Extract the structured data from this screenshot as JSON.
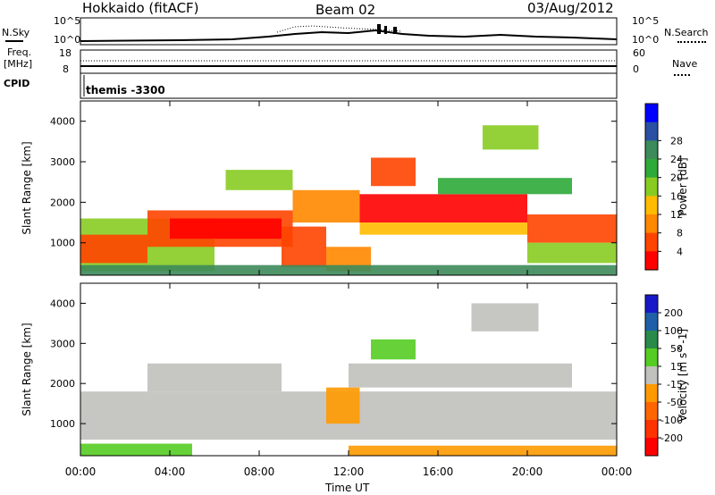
{
  "header": {
    "station": "Hokkaido (fitACF)",
    "beam": "Beam 02",
    "date": "03/Aug/2012"
  },
  "nsky_panel": {
    "label": "N.Sky",
    "left_ticks": [
      "10^5",
      "10^0"
    ],
    "right_label": "N.Search",
    "right_ticks": [
      "10^5",
      "10^0"
    ]
  },
  "freq_panel": {
    "label_line1": "Freq.",
    "label_line2": "[MHz]",
    "left_ticks": [
      "18",
      "8"
    ],
    "right_label": "Nave",
    "right_ticks": [
      "60",
      "0"
    ],
    "cpid_label": "CPID",
    "cpid_value": "themis -3300"
  },
  "colors": {
    "white": "#ffffff",
    "black": "#000000",
    "velocity_ground_scatter": "#c0c0bc"
  },
  "chart_data": [
    {
      "type": "heatmap",
      "name": "power",
      "ylabel": "Slant Range [km]",
      "xlabel": "",
      "ylim": [
        200,
        4500
      ],
      "xlim": [
        0,
        24
      ],
      "yticks": [
        "1000",
        "2000",
        "3000",
        "4000"
      ],
      "xticks": [
        "00:00",
        "04:00",
        "08:00",
        "12:00",
        "16:00",
        "20:00",
        "00:00"
      ],
      "colorbar": {
        "label": "Power [dB]",
        "ticks": [
          "4",
          "8",
          "12",
          "16",
          "20",
          "24",
          "28"
        ],
        "colors": [
          "#0000ff",
          "#2a4fa3",
          "#3d8a5a",
          "#2eaa3a",
          "#88cc22",
          "#ffbb00",
          "#ff8800",
          "#ff4400",
          "#ff0000"
        ]
      },
      "bands": [
        {
          "t0": 0.0,
          "t1": 6.0,
          "r0": 300,
          "r1": 1600,
          "level": 4
        },
        {
          "t0": 0.0,
          "t1": 3.0,
          "r0": 500,
          "r1": 1200,
          "level": 7
        },
        {
          "t0": 3.0,
          "t1": 9.5,
          "r0": 900,
          "r1": 1800,
          "level": 7
        },
        {
          "t0": 4.0,
          "t1": 9.0,
          "r0": 1100,
          "r1": 1600,
          "level": 8
        },
        {
          "t0": 6.5,
          "t1": 9.5,
          "r0": 2300,
          "r1": 2800,
          "level": 4
        },
        {
          "t0": 9.0,
          "t1": 11.0,
          "r0": 400,
          "r1": 1400,
          "level": 7
        },
        {
          "t0": 9.5,
          "t1": 12.5,
          "r0": 1500,
          "r1": 2300,
          "level": 6
        },
        {
          "t0": 11.0,
          "t1": 13.0,
          "r0": 300,
          "r1": 900,
          "level": 6
        },
        {
          "t0": 13.0,
          "t1": 15.0,
          "r0": 2400,
          "r1": 3100,
          "level": 7
        },
        {
          "t0": 12.5,
          "t1": 20.0,
          "r0": 1500,
          "r1": 2200,
          "level": 8
        },
        {
          "t0": 12.5,
          "t1": 20.0,
          "r0": 1200,
          "r1": 1500,
          "level": 5
        },
        {
          "t0": 16.0,
          "t1": 22.0,
          "r0": 2200,
          "r1": 2600,
          "level": 3
        },
        {
          "t0": 18.0,
          "t1": 20.5,
          "r0": 3300,
          "r1": 3900,
          "level": 4
        },
        {
          "t0": 20.0,
          "t1": 24.0,
          "r0": 1000,
          "r1": 1700,
          "level": 7
        },
        {
          "t0": 20.0,
          "t1": 24.0,
          "r0": 500,
          "r1": 1000,
          "level": 4
        },
        {
          "t0": 0.0,
          "t1": 24.0,
          "r0": 200,
          "r1": 450,
          "level": 2
        }
      ]
    },
    {
      "type": "heatmap",
      "name": "velocity",
      "ylabel": "Slant Range [km]",
      "xlabel": "Time UT",
      "ylim": [
        200,
        4500
      ],
      "xlim": [
        0,
        24
      ],
      "yticks": [
        "1000",
        "2000",
        "3000",
        "4000"
      ],
      "xticks": [
        "00:00",
        "04:00",
        "08:00",
        "12:00",
        "16:00",
        "20:00",
        "00:00"
      ],
      "colorbar": {
        "label": "Velocity [m s^-1]",
        "ticks": [
          "200",
          "100",
          "50",
          "15",
          "-15",
          "-50",
          "-100",
          "-200"
        ],
        "colors": [
          "#1818c8",
          "#1f5fa8",
          "#2a8a4a",
          "#55cc22",
          "#c0c0bc",
          "#ff9900",
          "#ff6600",
          "#ff3300",
          "#ff0000"
        ]
      },
      "bands": [
        {
          "t0": 0.0,
          "t1": 24.0,
          "r0": 600,
          "r1": 1800,
          "level": 4
        },
        {
          "t0": 3.0,
          "t1": 9.0,
          "r0": 1800,
          "r1": 2500,
          "level": 4
        },
        {
          "t0": 12.0,
          "t1": 22.0,
          "r0": 1900,
          "r1": 2500,
          "level": 4
        },
        {
          "t0": 17.5,
          "t1": 20.5,
          "r0": 3300,
          "r1": 4000,
          "level": 4
        },
        {
          "t0": 13.0,
          "t1": 15.0,
          "r0": 2600,
          "r1": 3100,
          "level": 3
        },
        {
          "t0": 11.0,
          "t1": 12.5,
          "r0": 1000,
          "r1": 1900,
          "level": 5
        },
        {
          "t0": 0.0,
          "t1": 5.0,
          "r0": 200,
          "r1": 500,
          "level": 3
        },
        {
          "t0": 12.0,
          "t1": 24.0,
          "r0": 200,
          "r1": 450,
          "level": 5
        }
      ]
    }
  ]
}
